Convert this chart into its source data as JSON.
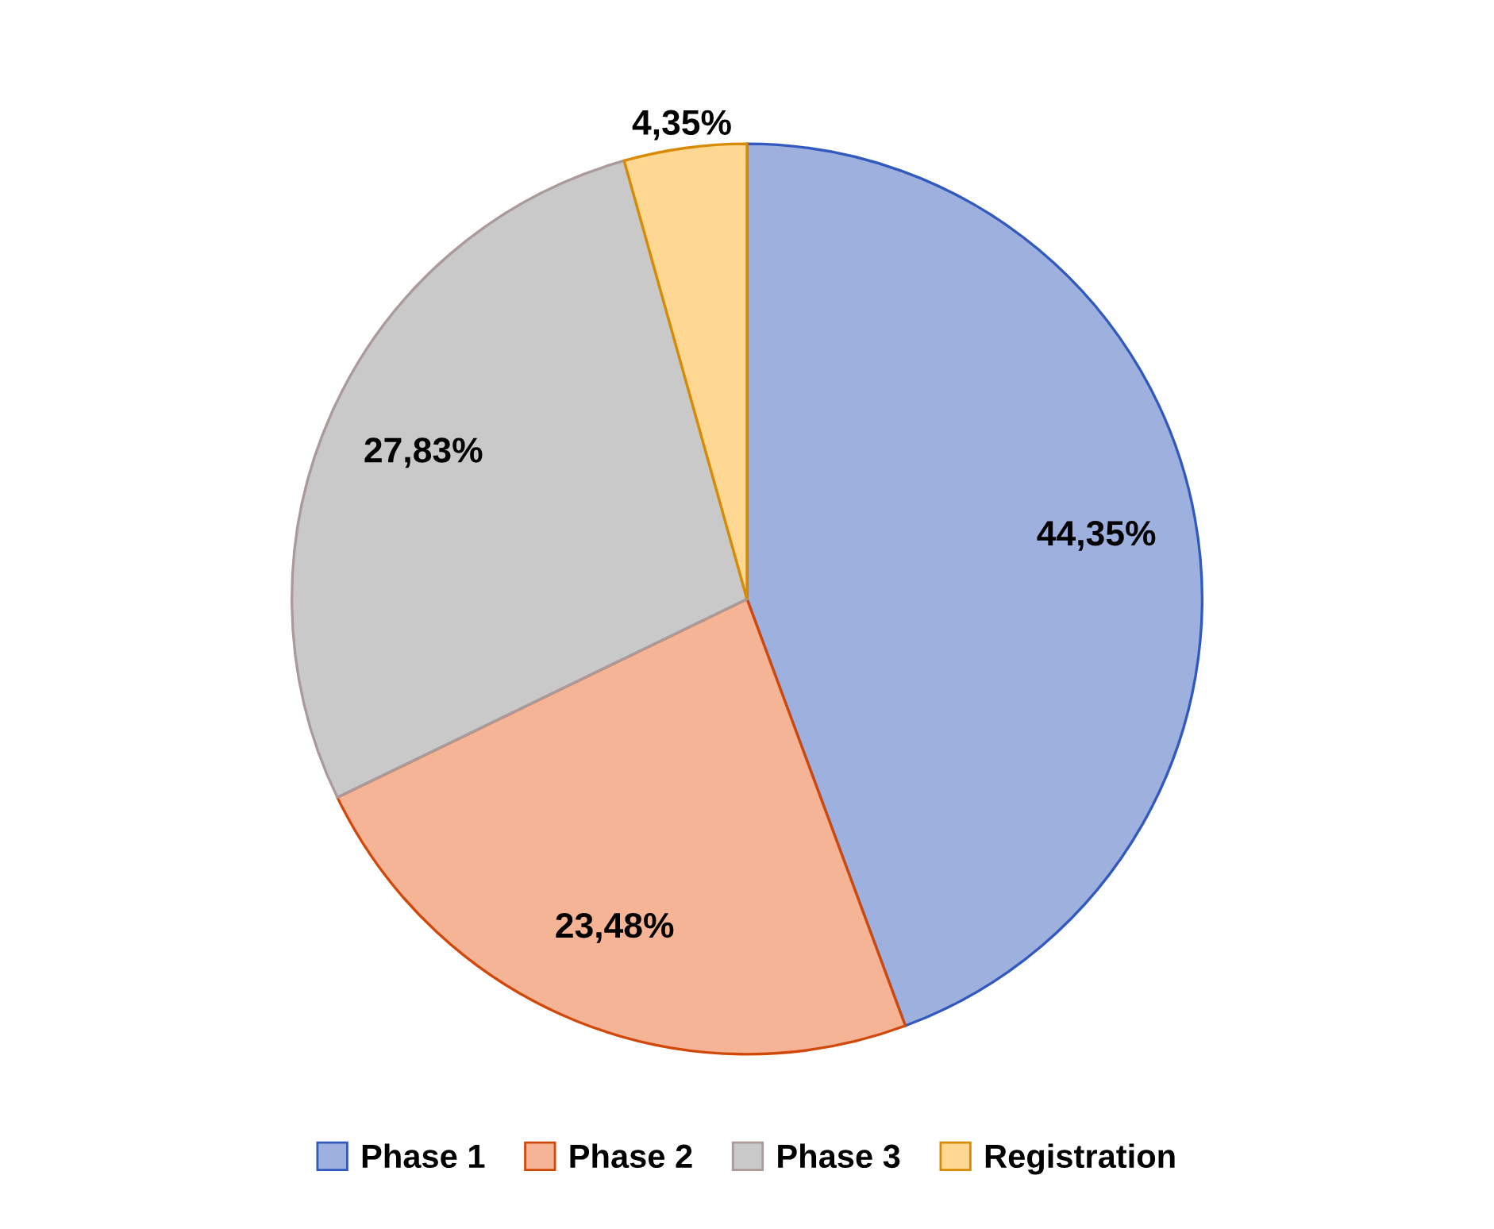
{
  "chart_data": {
    "type": "pie",
    "categories": [
      "Phase 1",
      "Phase 2",
      "Phase 3",
      "Registration"
    ],
    "values": [
      44.35,
      23.48,
      27.83,
      4.35
    ],
    "value_labels": [
      "44,35%",
      "23,48%",
      "27,83%",
      "4,35%"
    ],
    "colors": [
      "#9eb0de",
      "#f5b496",
      "#c9c9c9",
      "#fed893"
    ],
    "legend": "bottom"
  }
}
